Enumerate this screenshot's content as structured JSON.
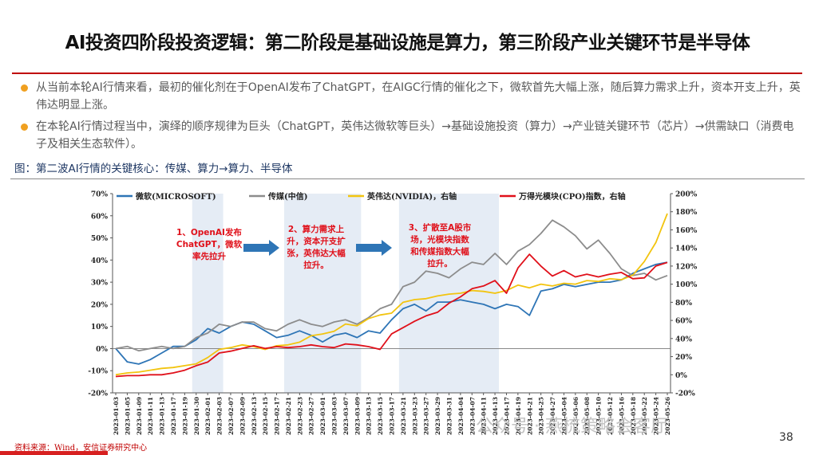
{
  "slide": {
    "title": "AI投资四阶段投资逻辑：第二阶段是基础设施是算力，第三阶段产业关键环节是半导体",
    "bullets": [
      "从当前本轮AI行情来看，最初的催化剂在于OpenAI发布了ChatGPT，在AIGC行情的催化之下，微软首先大幅上涨，随后算力需求上升，资本开支上升，英伟达明显上涨。",
      "在本轮AI行情过程当中，演绎的顺序规律为巨头（ChatGPT，英伟达微软等巨头）→基础设施投资（算力）→产业链关键环节（芯片）→供需缺口（消费电子及相关生态软件）。"
    ],
    "figure_caption": "图：第二波AI行情的关键核心：传媒、算力→算力、半导体",
    "source": "资料来源：Wind，安信证券研究中心",
    "page_number": "38",
    "watermark": "公众号 · 燕梳策略会客厅"
  },
  "chart_data": {
    "type": "line",
    "x": [
      "2023-01-03",
      "2023-01-05",
      "2023-01-09",
      "2023-01-11",
      "2023-01-13",
      "2023-01-17",
      "2023-01-19",
      "2023-01-30",
      "2023-02-01",
      "2023-02-03",
      "2023-02-07",
      "2023-02-09",
      "2023-02-13",
      "2023-02-15",
      "2023-02-17",
      "2023-02-21",
      "2023-02-23",
      "2023-02-27",
      "2023-03-01",
      "2023-03-03",
      "2023-03-07",
      "2023-03-09",
      "2023-03-13",
      "2023-03-15",
      "2023-03-17",
      "2023-03-21",
      "2023-03-23",
      "2023-03-27",
      "2023-03-29",
      "2023-03-31",
      "2023-04-04",
      "2023-04-07",
      "2023-04-11",
      "2023-04-13",
      "2023-04-17",
      "2023-04-19",
      "2023-04-21",
      "2023-04-25",
      "2023-04-27",
      "2023-05-04",
      "2023-05-06",
      "2023-05-08",
      "2023-05-10",
      "2023-05-12",
      "2023-05-16",
      "2023-05-18",
      "2023-05-22",
      "2023-05-24",
      "2023-05-26"
    ],
    "left_axis": {
      "min": -0.2,
      "max": 0.7,
      "ticks": [
        "-20%",
        "-10%",
        "0%",
        "10%",
        "20%",
        "30%",
        "40%",
        "50%",
        "60%",
        "70%"
      ]
    },
    "right_axis": {
      "min": -0.2,
      "max": 2.0,
      "ticks": [
        "-20%",
        "0%",
        "20%",
        "40%",
        "60%",
        "80%",
        "100%",
        "120%",
        "140%",
        "160%",
        "180%",
        "200%"
      ]
    },
    "series": [
      {
        "name": "微软(MICROSOFT)",
        "axis": "left",
        "color": "#2e75b6",
        "values": [
          0,
          -0.06,
          -0.07,
          -0.05,
          -0.02,
          0.01,
          0.01,
          0.04,
          0.09,
          0.07,
          0.1,
          0.12,
          0.11,
          0.08,
          0.05,
          0.06,
          0.08,
          0.06,
          0.03,
          0.06,
          0.07,
          0.05,
          0.08,
          0.07,
          0.13,
          0.18,
          0.2,
          0.17,
          0.21,
          0.21,
          0.22,
          0.21,
          0.2,
          0.18,
          0.2,
          0.19,
          0.15,
          0.26,
          0.27,
          0.29,
          0.28,
          0.29,
          0.3,
          0.3,
          0.31,
          0.34,
          0.36,
          0.38,
          0.39
        ]
      },
      {
        "name": "传媒(中信)",
        "axis": "left",
        "color": "#8c8c8c",
        "values": [
          0,
          0.01,
          -0.01,
          0,
          0.01,
          0,
          0.01,
          0.05,
          0.07,
          0.11,
          0.1,
          0.12,
          0.12,
          0.09,
          0.08,
          0.11,
          0.13,
          0.11,
          0.1,
          0.12,
          0.13,
          0.11,
          0.14,
          0.18,
          0.2,
          0.28,
          0.3,
          0.35,
          0.34,
          0.32,
          0.36,
          0.39,
          0.38,
          0.43,
          0.38,
          0.44,
          0.47,
          0.52,
          0.58,
          0.55,
          0.51,
          0.45,
          0.49,
          0.43,
          0.36,
          0.33,
          0.34,
          0.31,
          0.33
        ]
      },
      {
        "name": "英伟达(NVIDIA)，右轴",
        "axis": "right",
        "color": "#f2c40f",
        "values": [
          0,
          0.02,
          0.03,
          0.05,
          0.07,
          0.08,
          0.1,
          0.12,
          0.19,
          0.28,
          0.3,
          0.33,
          0.31,
          0.28,
          0.32,
          0.33,
          0.36,
          0.43,
          0.45,
          0.48,
          0.56,
          0.54,
          0.62,
          0.66,
          0.68,
          0.8,
          0.83,
          0.84,
          0.87,
          0.89,
          0.9,
          0.93,
          0.92,
          0.9,
          0.93,
          0.99,
          0.96,
          1.0,
          0.98,
          1.01,
          1.0,
          1.04,
          1.03,
          1.06,
          1.05,
          1.1,
          1.25,
          1.46,
          1.78
        ]
      },
      {
        "name": "万得光模块(CPO)指数，右轴",
        "axis": "right",
        "color": "#e0101a",
        "values": [
          -0.02,
          -0.01,
          -0.01,
          0,
          0,
          0.02,
          0.05,
          0.1,
          0.14,
          0.24,
          0.26,
          0.29,
          0.32,
          0.29,
          0.31,
          0.3,
          0.31,
          0.33,
          0.31,
          0.3,
          0.34,
          0.33,
          0.31,
          0.28,
          0.45,
          0.52,
          0.59,
          0.65,
          0.69,
          0.79,
          0.86,
          0.95,
          0.98,
          1.04,
          0.9,
          1.18,
          1.33,
          1.2,
          1.09,
          1.15,
          1.08,
          1.11,
          1.08,
          1.11,
          1.13,
          1.06,
          1.07,
          1.2,
          1.24
        ]
      }
    ],
    "annotations": [
      {
        "text": [
          "1、OpenAI发布",
          "ChatGPT，微软",
          "率先拉升"
        ]
      },
      {
        "text": [
          "2、算力需求上",
          "升，资本开支扩",
          "张，英伟达大幅",
          "拉升。"
        ]
      },
      {
        "text": [
          "3、扩散至A股市",
          "场，光模块指数",
          "和传媒指数大幅",
          "拉升。"
        ]
      }
    ],
    "shaded_periods": [
      [
        "2023-01-30",
        "2023-02-03"
      ],
      [
        "2023-02-21",
        "2023-03-09"
      ],
      [
        "2023-03-21",
        "2023-04-13"
      ]
    ],
    "legend_placement": "top",
    "grid": false
  }
}
